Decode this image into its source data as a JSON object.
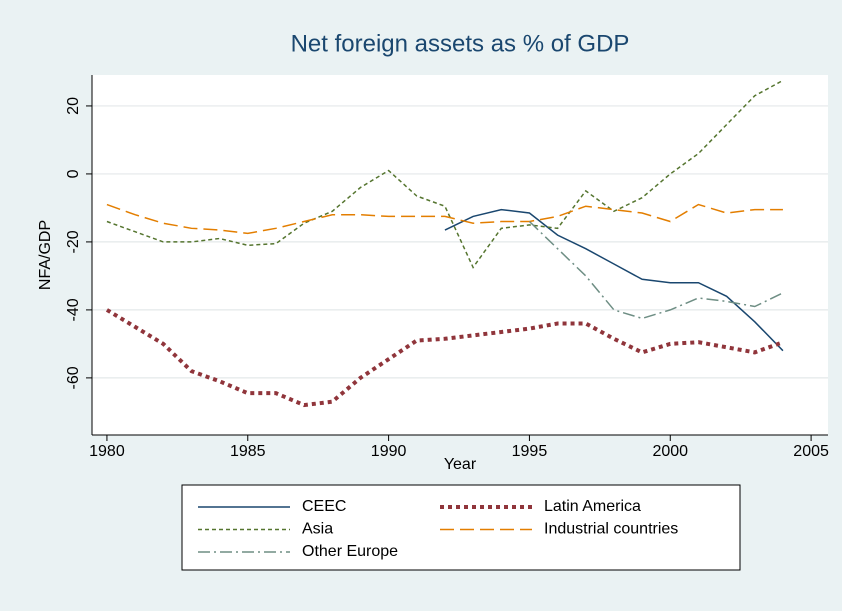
{
  "chart_data": {
    "type": "line",
    "title": "Net foreign assets as % of GDP",
    "x_label": "Year",
    "y_label": "NFA/GDP",
    "x": [
      1980,
      1981,
      1982,
      1983,
      1984,
      1985,
      1986,
      1987,
      1988,
      1989,
      1990,
      1991,
      1992,
      1993,
      1994,
      1995,
      1996,
      1997,
      1998,
      1999,
      2000,
      2001,
      2002,
      2003,
      2004
    ],
    "series": [
      {
        "name": "CEEC",
        "color": "#1a476f",
        "dash": "none",
        "width": 1.5,
        "values": [
          null,
          null,
          null,
          null,
          null,
          null,
          null,
          null,
          null,
          null,
          null,
          null,
          -16.5,
          -12.5,
          -10.5,
          -11.5,
          -18,
          -22,
          -26.5,
          -31,
          -32,
          -32,
          -36,
          -43.5,
          -52
        ]
      },
      {
        "name": "Latin America",
        "color": "#90353b",
        "dash": "4 4",
        "width": 4,
        "values": [
          -40,
          -45,
          -50,
          -58,
          -61,
          -64.5,
          -64.5,
          -68,
          -67,
          -60,
          -54.5,
          -49,
          -48.5,
          -47.5,
          -46.5,
          -45.5,
          -44,
          -44,
          -48.5,
          -52.5,
          -50,
          -49.5,
          -51,
          -52.5,
          -49.5
        ]
      },
      {
        "name": "Asia",
        "color": "#55752f",
        "dash": "4 3",
        "width": 1.5,
        "values": [
          -14,
          -17,
          -20,
          -20,
          -19,
          -21,
          -20.5,
          -14.5,
          -11,
          -4,
          1,
          -6.5,
          -9.5,
          -27.5,
          -16,
          -15,
          -16,
          -5,
          -11,
          -7,
          0,
          6,
          14.5,
          23,
          27.5
        ]
      },
      {
        "name": "Industrial countries",
        "color": "#e37e00",
        "dash": "14 6",
        "width": 1.5,
        "values": [
          -9,
          -12,
          -14.5,
          -16,
          -16.5,
          -17.5,
          -16,
          -14,
          -12,
          -12,
          -12.5,
          -12.5,
          -12.5,
          -14.5,
          -14,
          -14,
          -12.5,
          -9.5,
          -10.5,
          -11.5,
          -14,
          -9,
          -11.5,
          -10.5,
          -10.5
        ]
      },
      {
        "name": "Other Europe",
        "color": "#6e8e84",
        "dash": "12 4 2 4",
        "width": 1.5,
        "values": [
          null,
          null,
          null,
          null,
          null,
          null,
          null,
          null,
          null,
          null,
          null,
          null,
          null,
          null,
          null,
          -14,
          -22,
          -30,
          -40,
          -42.5,
          -40,
          -36.5,
          -37.5,
          -39,
          -35
        ]
      }
    ],
    "xlim": [
      1979.47,
      2005.6
    ],
    "xticks": [
      1980,
      1985,
      1990,
      1995,
      2000,
      2005
    ],
    "ylim": [
      -76.8,
      29.1
    ],
    "yticks": [
      -60,
      -40,
      -20,
      0,
      20
    ],
    "grid": true,
    "legend": "bottom"
  }
}
